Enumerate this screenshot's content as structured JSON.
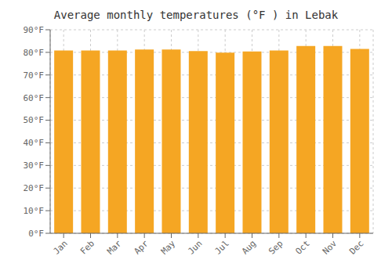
{
  "chart_data": {
    "type": "bar",
    "title": "Average monthly temperatures (°F ) in Lebak",
    "categories": [
      "Jan",
      "Feb",
      "Mar",
      "Apr",
      "May",
      "Jun",
      "Jul",
      "Aug",
      "Sep",
      "Oct",
      "Nov",
      "Dec"
    ],
    "values": [
      80.8,
      80.8,
      80.8,
      81.3,
      81.3,
      80.6,
      79.9,
      80.4,
      80.8,
      82.8,
      82.8,
      81.5
    ],
    "color": "#F5A623",
    "ylim": [
      0,
      90
    ],
    "yticks": [
      {
        "value": 0,
        "label": "0°F"
      },
      {
        "value": 10,
        "label": "10°F"
      },
      {
        "value": 20,
        "label": "20°F"
      },
      {
        "value": 30,
        "label": "30°F"
      },
      {
        "value": 40,
        "label": "40°F"
      },
      {
        "value": 50,
        "label": "50°F"
      },
      {
        "value": 60,
        "label": "60°F"
      },
      {
        "value": 70,
        "label": "70°F"
      },
      {
        "value": 80,
        "label": "80°F"
      },
      {
        "value": 90,
        "label": "90°F"
      }
    ],
    "grid": true
  }
}
